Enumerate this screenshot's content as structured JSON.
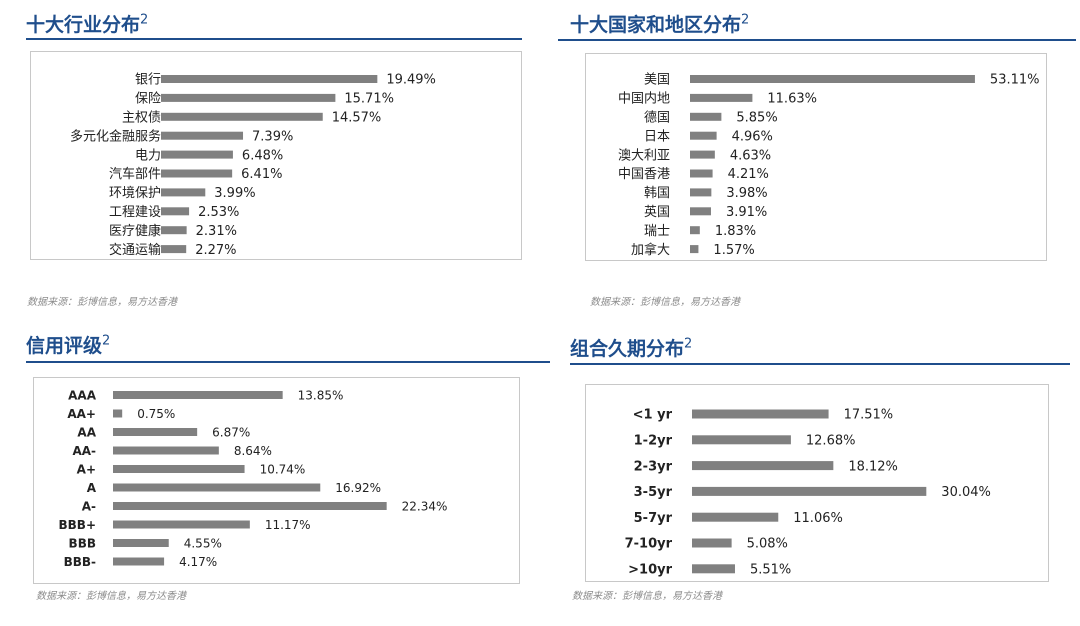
{
  "colors": {
    "accent": "#1f4e8c",
    "bar": "#808080",
    "text": "#222222"
  },
  "panels": [
    {
      "title": "十大行业分布",
      "sup": "2",
      "source": "数据来源：彭博信息，易方达香港",
      "chart_data": {
        "type": "bar",
        "orientation": "horizontal",
        "categories": [
          "银行",
          "保险",
          "主权债",
          "多元化金融服务",
          "电力",
          "汽车部件",
          "环境保护",
          "工程建设",
          "医疗健康",
          "交通运输"
        ],
        "values": [
          19.49,
          15.71,
          14.57,
          7.39,
          6.48,
          6.41,
          3.99,
          2.53,
          2.31,
          2.27
        ],
        "labels": [
          "19.49%",
          "15.71%",
          "14.57%",
          "7.39%",
          "6.48%",
          "6.41%",
          "3.99%",
          "2.53%",
          "2.31%",
          "2.27%"
        ],
        "unit": "%",
        "grid": false
      }
    },
    {
      "title": "十大国家和地区分布",
      "sup": "2",
      "source": "数据来源：彭博信息，易方达香港",
      "chart_data": {
        "type": "bar",
        "orientation": "horizontal",
        "categories": [
          "美国",
          "中国内地",
          "德国",
          "日本",
          "澳大利亚",
          "中国香港",
          "韩国",
          "英国",
          "瑞士",
          "加拿大"
        ],
        "values": [
          53.11,
          11.63,
          5.85,
          4.96,
          4.63,
          4.21,
          3.98,
          3.91,
          1.83,
          1.57
        ],
        "labels": [
          "53.11%",
          "11.63%",
          "5.85%",
          "4.96%",
          "4.63%",
          "4.21%",
          "3.98%",
          "3.91%",
          "1.83%",
          "1.57%"
        ],
        "unit": "%",
        "grid": false
      }
    },
    {
      "title": "信用评级",
      "sup": "2",
      "source": "数据来源：彭博信息，易方达香港",
      "chart_data": {
        "type": "bar",
        "orientation": "horizontal",
        "categories": [
          "AAA",
          "AA+",
          "AA",
          "AA-",
          "A+",
          "A",
          "A-",
          "BBB+",
          "BBB",
          "BBB-"
        ],
        "values": [
          13.85,
          0.75,
          6.87,
          8.64,
          10.74,
          16.92,
          22.34,
          11.17,
          4.55,
          4.17
        ],
        "labels": [
          "13.85%",
          "0.75%",
          "6.87%",
          "8.64%",
          "10.74%",
          "16.92%",
          "22.34%",
          "11.17%",
          "4.55%",
          "4.17%"
        ],
        "unit": "%",
        "grid": false
      }
    },
    {
      "title": "组合久期分布",
      "sup": "2",
      "source": "数据来源：彭博信息，易方达香港",
      "chart_data": {
        "type": "bar",
        "orientation": "horizontal",
        "categories": [
          "<1 yr",
          "1-2yr",
          "2-3yr",
          "3-5yr",
          "5-7yr",
          "7-10yr",
          ">10yr"
        ],
        "values": [
          17.51,
          12.68,
          18.12,
          30.04,
          11.06,
          5.08,
          5.51
        ],
        "labels": [
          "17.51%",
          "12.68%",
          "18.12%",
          "30.04%",
          "11.06%",
          "5.08%",
          "5.51%"
        ],
        "unit": "%",
        "grid": false
      }
    }
  ]
}
